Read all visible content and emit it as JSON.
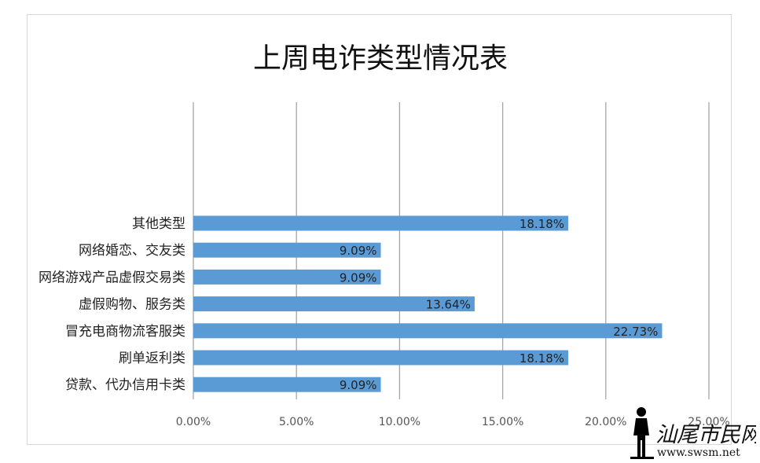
{
  "chart_data": {
    "type": "bar",
    "orientation": "horizontal",
    "title": "上周电诈类型情况表",
    "categories": [
      "其他类型",
      "网络婚恋、交友类",
      "网络游戏产品虚假交易类",
      "虚假购物、服务类",
      "冒充电商物流客服类",
      "刷单返利类",
      "贷款、代办信用卡类"
    ],
    "values": [
      18.18,
      9.09,
      9.09,
      13.64,
      22.73,
      18.18,
      9.09
    ],
    "data_labels": [
      "18.18%",
      "9.09%",
      "9.09%",
      "13.64%",
      "22.73%",
      "18.18%",
      "9.09%"
    ],
    "xlim": [
      0,
      25
    ],
    "xticks": [
      0,
      5,
      10,
      15,
      20,
      25
    ],
    "xtick_labels": [
      "0.00%",
      "5.00%",
      "10.00%",
      "15.00%",
      "20.00%",
      "25.00%"
    ],
    "grid": "vertical",
    "legend": "none",
    "bar_color": "#5b9bd5",
    "grid_color": "#a6a6a6"
  },
  "watermark": {
    "title": "汕尾市民网",
    "url": "www.swsm.net"
  }
}
